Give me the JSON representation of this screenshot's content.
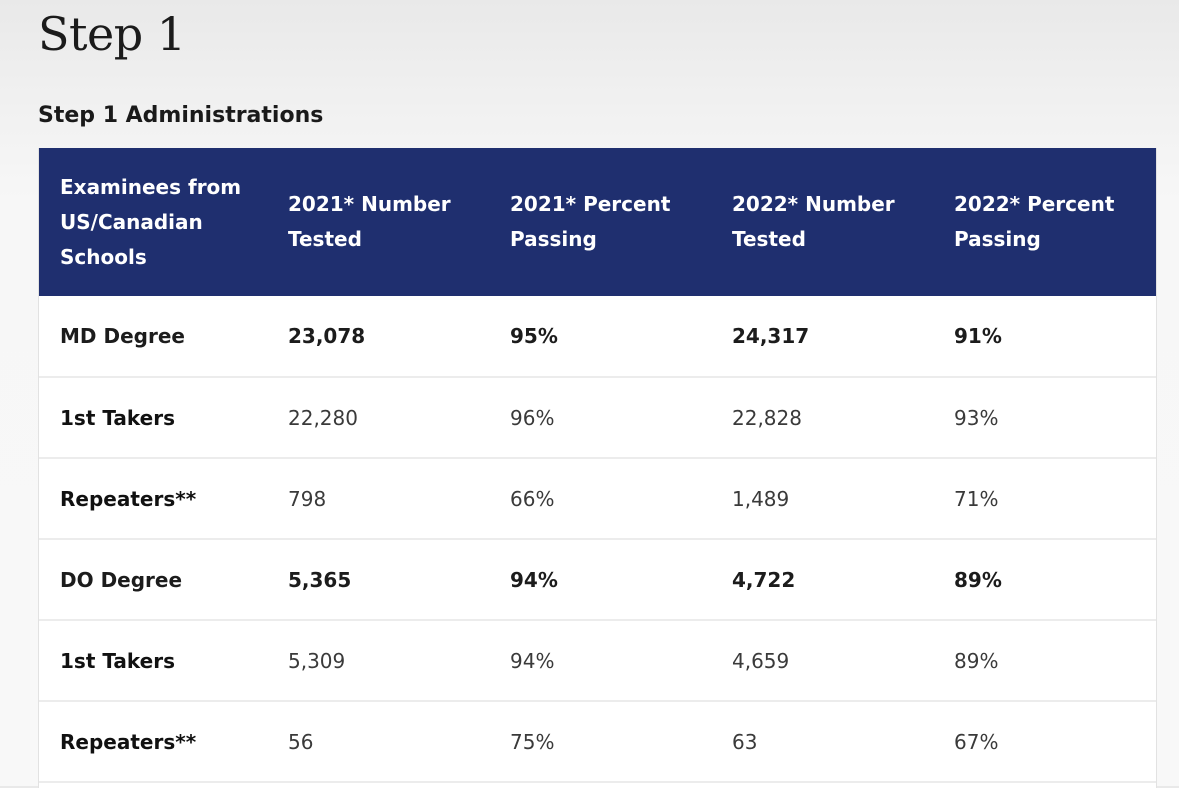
{
  "page": {
    "title": "Step 1",
    "section_title": "Step 1 Administrations"
  },
  "table": {
    "headers": [
      "Examinees from US/Canadian Schools",
      "2021* Number Tested",
      "2021* Percent Passing",
      "2022* Number Tested",
      "2022* Percent Passing"
    ],
    "rows": [
      [
        "MD Degree",
        "23,078",
        "95%",
        "24,317",
        "91%"
      ],
      [
        "1st Takers",
        "22,280",
        "96%",
        "22,828",
        "93%"
      ],
      [
        "Repeaters**",
        "798",
        "66%",
        "1,489",
        "71%"
      ],
      [
        "DO Degree",
        "5,365",
        "94%",
        "4,722",
        "89%"
      ],
      [
        "1st Takers",
        "5,309",
        "94%",
        "4,659",
        "89%"
      ],
      [
        "Repeaters**",
        "56",
        "75%",
        "63",
        "67%"
      ]
    ]
  },
  "colors": {
    "header_background": "#1f2f6f",
    "header_text": "#ffffff",
    "row_divider": "#ececec"
  }
}
